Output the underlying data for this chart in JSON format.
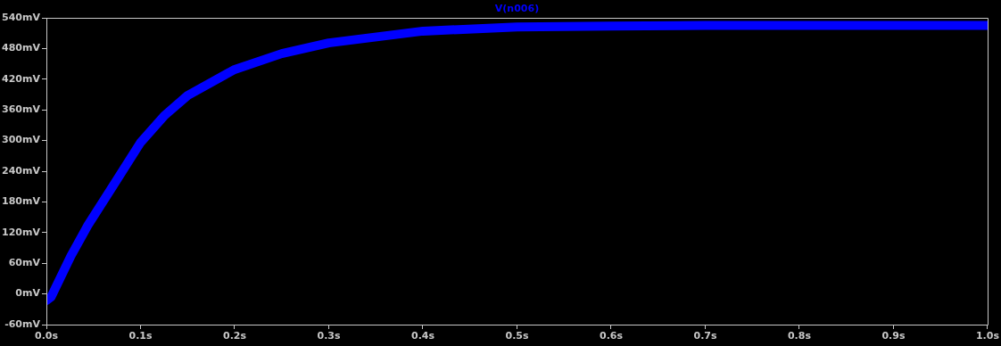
{
  "chart_data": {
    "type": "line",
    "title": "V(n006)",
    "x": [
      0,
      0.005,
      0.026,
      0.044,
      0.07,
      0.1,
      0.125,
      0.15,
      0.2,
      0.25,
      0.3,
      0.4,
      0.5,
      0.6,
      0.7,
      0.8,
      0.9,
      1.0
    ],
    "series": [
      {
        "color": "#0000ff",
        "values": [
          -13,
          -6,
          74,
          134,
          209,
          296,
          348,
          388,
          439,
          470,
          491,
          514,
          522,
          524,
          525,
          525,
          525,
          525
        ]
      }
    ],
    "xlim": [
      0,
      1
    ],
    "xticks": [
      {
        "value": 0,
        "label": "0.0s"
      },
      {
        "value": 0.1,
        "label": "0.1s"
      },
      {
        "value": 0.2,
        "label": "0.2s"
      },
      {
        "value": 0.3,
        "label": "0.3s"
      },
      {
        "value": 0.4,
        "label": "0.4s"
      },
      {
        "value": 0.5,
        "label": "0.5s"
      },
      {
        "value": 0.6,
        "label": "0.6s"
      },
      {
        "value": 0.7,
        "label": "0.7s"
      },
      {
        "value": 0.8,
        "label": "0.8s"
      },
      {
        "value": 0.9,
        "label": "0.9s"
      },
      {
        "value": 1,
        "label": "1.0s"
      }
    ],
    "ylim": [
      -60,
      540
    ],
    "yticks": [
      {
        "value": -60,
        "label": "-60mV"
      },
      {
        "value": 0,
        "label": "0mV"
      },
      {
        "value": 60,
        "label": "60mV"
      },
      {
        "value": 120,
        "label": "120mV"
      },
      {
        "value": 180,
        "label": "180mV"
      },
      {
        "value": 240,
        "label": "240mV"
      },
      {
        "value": 300,
        "label": "300mV"
      },
      {
        "value": 360,
        "label": "360mV"
      },
      {
        "value": 420,
        "label": "420mV"
      },
      {
        "value": 480,
        "label": "480mV"
      },
      {
        "value": 540,
        "label": "540mV"
      }
    ],
    "grid": false,
    "legend": false,
    "marker": "none",
    "line_style": "solid"
  }
}
